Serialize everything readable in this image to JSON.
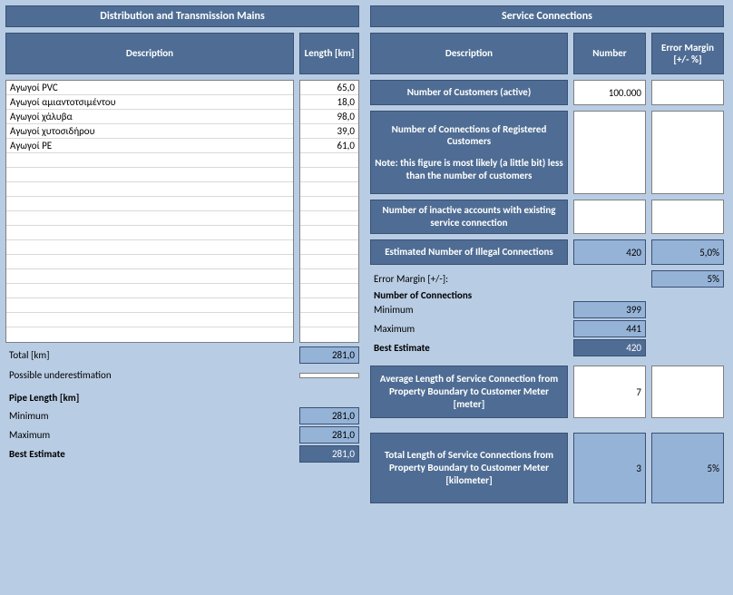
{
  "left": {
    "title": "Distribution and Transmission Mains",
    "headers": {
      "desc": "Description",
      "length": "Length [km]"
    },
    "rows": [
      {
        "desc": "Αγωγοί PVC",
        "len": "65,0"
      },
      {
        "desc": "Αγωγοί αμιαντοτσιμέντου",
        "len": "18,0"
      },
      {
        "desc": "Αγωγοί χάλυβα",
        "len": "98,0"
      },
      {
        "desc": "Αγωγοί χυτοσιδήρου",
        "len": "39,0"
      },
      {
        "desc": "Αγωγοί PE",
        "len": "61,0"
      }
    ],
    "blank_rows": 13,
    "total_label": "Total [km]",
    "total_val": "281,0",
    "underest_label": "Possible underestimation",
    "underest_val": "",
    "pipe_len_label": "Pipe Length [km]",
    "min_label": "Minimum",
    "min_val": "281,0",
    "max_label": "Maximum",
    "max_val": "281,0",
    "best_label": "Best Estimate",
    "best_val": "281,0"
  },
  "right": {
    "title": "Service Connections",
    "headers": {
      "desc": "Description",
      "number": "Number",
      "error": "Error Margin [+/- %]"
    },
    "r1_label": "Number of Customers (active)",
    "r1_num": "100.000",
    "r1_err": "",
    "r2_label_main": "Number of Connections of Registered Customers",
    "r2_label_note": "Note: this figure is most likely (a little bit) less than the number of customers",
    "r2_num": "",
    "r2_err": "",
    "r3_label": "Number of inactive accounts with existing service connection",
    "r3_num": "",
    "r3_err": "",
    "r4_label": "Estimated Number of Illegal Connections",
    "r4_num": "420",
    "r4_err": "5,0%",
    "err_margin_label": "Error Margin [+/-]:",
    "err_margin_val": "5%",
    "noc_label": "Number of Connections",
    "noc_min_label": "Minimum",
    "noc_min_val": "399",
    "noc_max_label": "Maximum",
    "noc_max_val": "441",
    "noc_best_label": "Best Estimate",
    "noc_best_val": "420",
    "r5_label": "Average Length of Service Connection from Property Boundary to Customer Meter [meter]",
    "r5_num": "7",
    "r5_err": "",
    "r6_label": "Total Length of Service Connections from Property Boundary to Customer Meter [kilometer]",
    "r6_num": "3",
    "r6_err": "5%"
  },
  "colors": {
    "page_bg": "#b8cce4",
    "header_bg": "#4f6d94",
    "header_border": "#3b5173",
    "light_cell": "#95b3d7",
    "dark_cell": "#4f6d94",
    "white": "#ffffff",
    "grid": "#d9d9d9"
  }
}
